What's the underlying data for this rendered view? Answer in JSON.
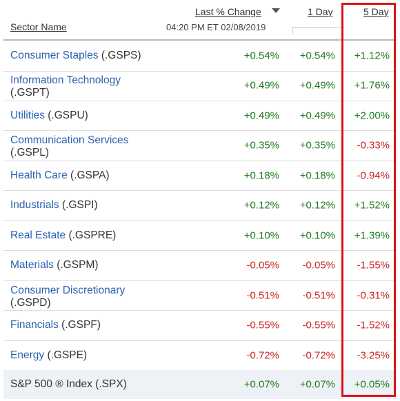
{
  "header": {
    "sector_name": "Sector Name",
    "last_change": "Last % Change",
    "timestamp": "04:20 PM ET 02/08/2019",
    "one_day": "1 Day",
    "five_day": "5 Day"
  },
  "rows": [
    {
      "name": "Consumer Staples",
      "ticker": "(.GSPS)",
      "last": "+0.54%",
      "day1": "+0.54%",
      "day5": "+1.12%"
    },
    {
      "name": "Information Technology",
      "ticker": "(.GSPT)",
      "last": "+0.49%",
      "day1": "+0.49%",
      "day5": "+1.76%"
    },
    {
      "name": "Utilities",
      "ticker": "(.GSPU)",
      "last": "+0.49%",
      "day1": "+0.49%",
      "day5": "+2.00%"
    },
    {
      "name": "Communication Services",
      "ticker": "(.GSPL)",
      "last": "+0.35%",
      "day1": "+0.35%",
      "day5": "-0.33%"
    },
    {
      "name": "Health Care",
      "ticker": "(.GSPA)",
      "last": "+0.18%",
      "day1": "+0.18%",
      "day5": "-0.94%"
    },
    {
      "name": "Industrials",
      "ticker": "(.GSPI)",
      "last": "+0.12%",
      "day1": "+0.12%",
      "day5": "+1.52%"
    },
    {
      "name": "Real Estate",
      "ticker": "(.GSPRE)",
      "last": "+0.10%",
      "day1": "+0.10%",
      "day5": "+1.39%"
    },
    {
      "name": "Materials",
      "ticker": "(.GSPM)",
      "last": "-0.05%",
      "day1": "-0.05%",
      "day5": "-1.55%"
    },
    {
      "name": "Consumer Discretionary",
      "ticker": "(.GSPD)",
      "last": "-0.51%",
      "day1": "-0.51%",
      "day5": "-0.31%"
    },
    {
      "name": "Financials",
      "ticker": "(.GSPF)",
      "last": "-0.55%",
      "day1": "-0.55%",
      "day5": "-1.52%"
    },
    {
      "name": "Energy",
      "ticker": "(.GSPE)",
      "last": "-0.72%",
      "day1": "-0.72%",
      "day5": "-3.25%"
    }
  ],
  "total": {
    "name": "S&P 500 ® Index",
    "ticker": "(.SPX)",
    "last": "+0.07%",
    "day1": "+0.07%",
    "day5": "+0.05%"
  },
  "colors": {
    "positive": "#1f7a1f",
    "negative": "#cc2222",
    "link": "#2c62b1",
    "highlight": "#d9141a"
  }
}
